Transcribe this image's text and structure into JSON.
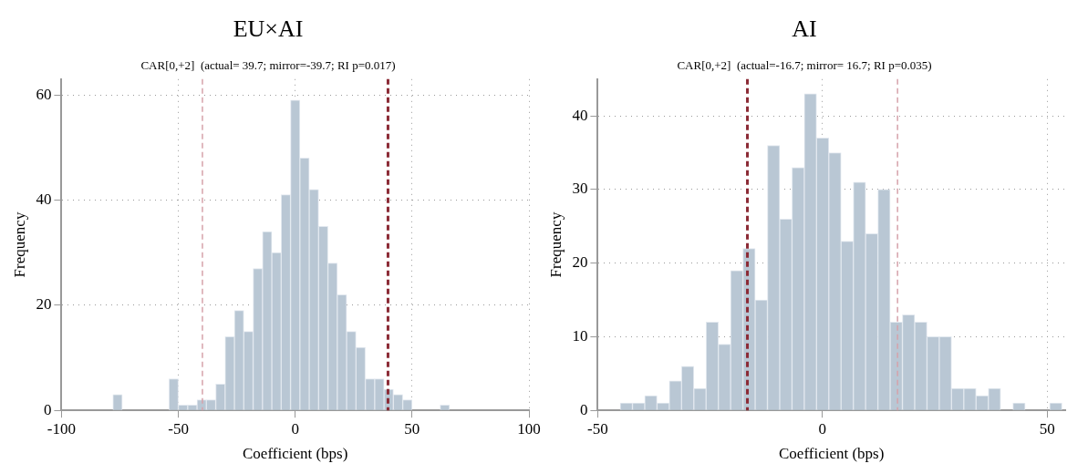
{
  "chart_data": [
    {
      "type": "histogram",
      "title": "EU×AI",
      "subtitle": "CAR[0,+2]  (actual= 39.7; mirror=-39.7; RI p=0.017)",
      "xlabel": "Coefficient (bps)",
      "ylabel": "Frequency",
      "bins": [
        -78,
        -74,
        -70,
        -66,
        -62,
        -58,
        -54,
        -50,
        -46,
        -42,
        -38,
        -34,
        -30,
        -26,
        -22,
        -18,
        -14,
        -10,
        -6,
        -2,
        2,
        6,
        10,
        14,
        18,
        22,
        26,
        30,
        34,
        38,
        42,
        46,
        50,
        54,
        58,
        62,
        66
      ],
      "values": [
        3,
        0,
        0,
        0,
        0,
        0,
        6,
        1,
        1,
        2,
        2,
        5,
        14,
        19,
        15,
        27,
        34,
        30,
        41,
        59,
        48,
        42,
        35,
        28,
        22,
        15,
        12,
        6,
        6,
        4,
        3,
        2,
        0,
        0,
        0,
        1
      ],
      "color": "#b9c7d4",
      "xlim": [
        -100,
        100
      ],
      "xticks": [
        -100,
        -50,
        0,
        50,
        100
      ],
      "ylim": [
        0,
        63
      ],
      "yticks": [
        0,
        20,
        40,
        60
      ],
      "grid": true,
      "ref_lines": [
        {
          "axis": "x",
          "value": 39.7,
          "color": "#8b2a35",
          "line_style": "dashed"
        },
        {
          "axis": "x",
          "value": -39.7,
          "color": "#d6a2aa",
          "line_style": "dashed"
        }
      ]
    },
    {
      "type": "histogram",
      "title": "AI",
      "subtitle": "CAR[0,+2]  (actual=-16.7; mirror= 16.7; RI p=0.035)",
      "xlabel": "Coefficient (bps)",
      "ylabel": "Frequency",
      "bins": [
        -45.0,
        -42.27,
        -39.54,
        -36.81,
        -34.08,
        -31.35,
        -28.62,
        -25.89,
        -23.16,
        -20.43,
        -17.7,
        -14.97,
        -12.24,
        -9.51,
        -6.78,
        -4.05,
        -1.32,
        1.41,
        4.14,
        6.87,
        9.6,
        12.33,
        15.06,
        17.79,
        20.52,
        23.25,
        25.98,
        28.71,
        31.44,
        34.17,
        36.9,
        39.63,
        42.36,
        45.09,
        47.82,
        50.55,
        53.28
      ],
      "values": [
        1,
        1,
        2,
        1,
        4,
        6,
        3,
        12,
        9,
        19,
        22,
        15,
        36,
        26,
        33,
        43,
        37,
        35,
        23,
        31,
        24,
        30,
        12,
        13,
        12,
        10,
        10,
        3,
        3,
        2,
        3,
        0,
        1,
        0,
        0,
        1
      ],
      "color": "#b9c7d4",
      "xlim": [
        -50,
        54
      ],
      "xticks": [
        -50,
        0,
        50
      ],
      "ylim": [
        0,
        45
      ],
      "yticks": [
        0,
        10,
        20,
        30,
        40
      ],
      "grid": true,
      "ref_lines": [
        {
          "axis": "x",
          "value": -16.7,
          "color": "#8b2a35",
          "line_style": "dashed"
        },
        {
          "axis": "x",
          "value": 16.7,
          "color": "#d6a2aa",
          "line_style": "dashed"
        }
      ]
    }
  ]
}
